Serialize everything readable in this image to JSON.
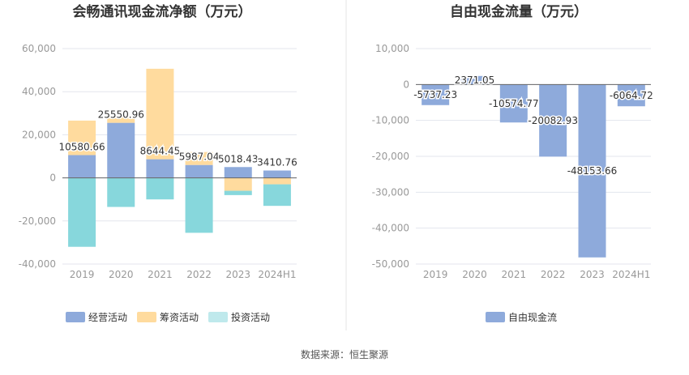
{
  "source": "数据来源：恒生聚源",
  "colors": {
    "operating": "#8eaadb",
    "financing": "#ffdb9e",
    "investing": "#87d7dc",
    "investing_legend": "#bfe9ec",
    "free_cash_flow": "#8eaadb",
    "grid": "#e3e6ee",
    "axis_text": "#999999",
    "label_text": "#333333",
    "title_text": "#333333",
    "divider": "#e6e6e6"
  },
  "chart_data": [
    {
      "type": "bar",
      "stacked": true,
      "title": "会畅通讯现金流净额（万元）",
      "categories": [
        "2019",
        "2020",
        "2021",
        "2022",
        "2023",
        "2024H1"
      ],
      "yticks": [
        "60,000",
        "40,000",
        "20,000",
        "0",
        "-20,000",
        "-40,000"
      ],
      "ylim": [
        -40000,
        60000
      ],
      "grid": true,
      "legend_position": "bottom",
      "series": [
        {
          "name": "经营活动",
          "values": [
            10580.66,
            25550.96,
            8644.45,
            5987.04,
            5018.43,
            3410.76
          ]
        },
        {
          "name": "筹资活动",
          "values": [
            16000,
            3000,
            42000,
            6000,
            -6000,
            -3000
          ]
        },
        {
          "name": "投资活动",
          "values": [
            -32000,
            -13500,
            -10000,
            -25500,
            -2000,
            -10000
          ]
        }
      ],
      "data_labels": [
        "10580.66",
        "25550.96",
        "8644.45",
        "5987.04",
        "5018.43",
        "3410.76"
      ]
    },
    {
      "type": "bar",
      "title": "自由现金流量（万元）",
      "categories": [
        "2019",
        "2020",
        "2021",
        "2022",
        "2023",
        "2024H1"
      ],
      "yticks": [
        "10,000",
        "0",
        "-10,000",
        "-20,000",
        "-30,000",
        "-40,000",
        "-50,000"
      ],
      "ylim": [
        -50000,
        10000
      ],
      "grid": true,
      "legend_position": "bottom",
      "series": [
        {
          "name": "自由现金流",
          "values": [
            -5737.23,
            2371.05,
            -10574.77,
            -20082.93,
            -48153.66,
            -6064.72
          ]
        }
      ],
      "data_labels": [
        "-5737.23",
        "2371.05",
        "-10574.77",
        "-20082.93",
        "-48153.66",
        "-6064.72"
      ]
    }
  ]
}
